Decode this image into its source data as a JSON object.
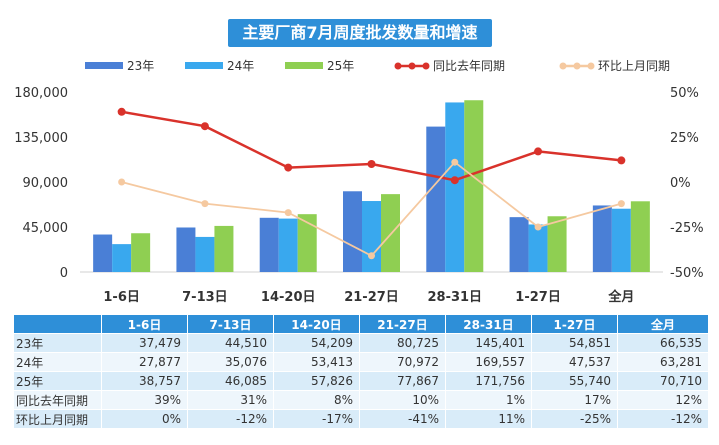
{
  "chart_data": {
    "type": "bar",
    "title": "主要厂商7月周度批发数量和增速",
    "categories": [
      "1-6日",
      "7-13日",
      "14-20日",
      "21-27日",
      "28-31日",
      "1-27日",
      "全月"
    ],
    "series": [
      {
        "name": "23年",
        "color": "#4a7fd6",
        "values": [
          37479,
          44510,
          54209,
          80725,
          145401,
          54851,
          66535
        ]
      },
      {
        "name": "24年",
        "color": "#39a8ee",
        "values": [
          27877,
          35076,
          53413,
          70972,
          169557,
          47537,
          63281
        ]
      },
      {
        "name": "25年",
        "color": "#8fcf52",
        "values": [
          38757,
          46085,
          57826,
          77867,
          171756,
          55740,
          70710
        ]
      }
    ],
    "line_series": [
      {
        "name": "同比去年同期",
        "color": "#d9322b",
        "values": [
          39,
          31,
          8,
          10,
          1,
          17,
          12
        ]
      },
      {
        "name": "环比上月同期",
        "color": "#f5c9a0",
        "values": [
          0,
          -12,
          -17,
          -41,
          11,
          -25,
          -12
        ]
      }
    ],
    "y_left": {
      "ylim": [
        0,
        180000
      ],
      "ticks": [
        "0",
        "45,000",
        "90,000",
        "135,000",
        "180,000"
      ]
    },
    "y_right": {
      "ylim": [
        -50,
        50
      ],
      "ticks": [
        "-50%",
        "-25%",
        "0%",
        "25%",
        "50%"
      ]
    },
    "legend_position": "top",
    "table": {
      "header": [
        "",
        "1-6日",
        "7-13日",
        "14-20日",
        "21-27日",
        "28-31日",
        "1-27日",
        "全月"
      ],
      "rows": [
        [
          "23年",
          "37,479",
          "44,510",
          "54,209",
          "80,725",
          "145,401",
          "54,851",
          "66,535"
        ],
        [
          "24年",
          "27,877",
          "35,076",
          "53,413",
          "70,972",
          "169,557",
          "47,537",
          "63,281"
        ],
        [
          "25年",
          "38,757",
          "46,085",
          "57,826",
          "77,867",
          "171,756",
          "55,740",
          "70,710"
        ],
        [
          "同比去年同期",
          "39%",
          "31%",
          "8%",
          "10%",
          "1%",
          "17%",
          "12%"
        ],
        [
          "环比上月同期",
          "0%",
          "-12%",
          "-17%",
          "-41%",
          "11%",
          "-25%",
          "-12%"
        ]
      ]
    }
  }
}
